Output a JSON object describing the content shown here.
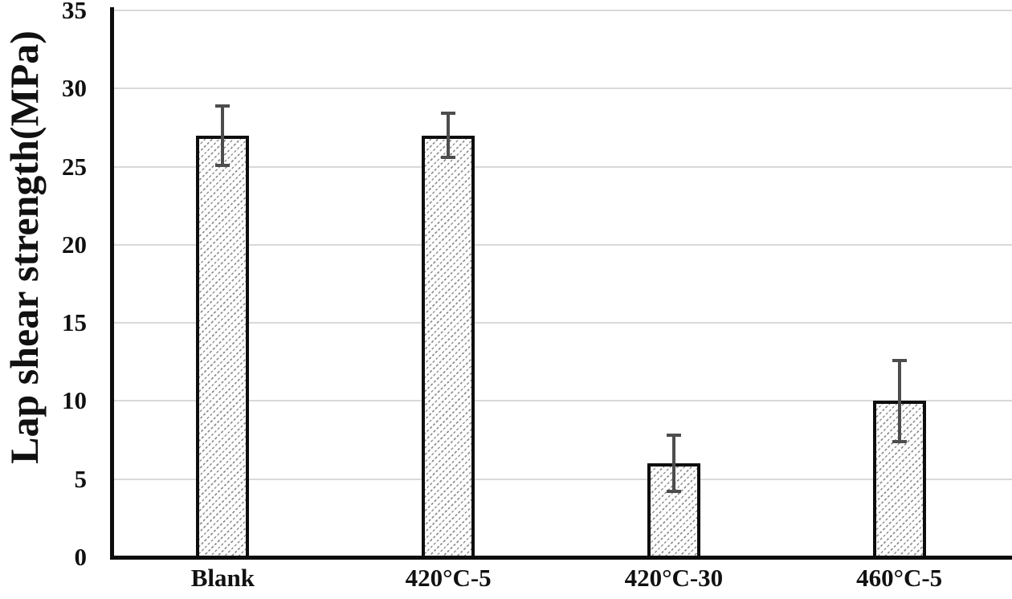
{
  "chart_data": {
    "type": "bar",
    "title": "",
    "xlabel": "",
    "ylabel": "Lap shear strength(MPa)",
    "ylim": [
      0,
      35
    ],
    "yticks": [
      0,
      5,
      10,
      15,
      20,
      25,
      30,
      35
    ],
    "grid": "horizontal",
    "legend": "none",
    "categories": [
      "Blank",
      "420°C-5",
      "420°C-30",
      "460°C-5"
    ],
    "values": [
      27,
      27,
      6,
      10
    ],
    "errors": [
      1.9,
      1.4,
      1.8,
      2.6
    ],
    "style": {
      "bar_fill": "diagonal-dashed-hatch",
      "hatch_color": "#8f8f8f",
      "bar_border_color": "#0d0d0d",
      "error_bar_color": "#4d4d4d",
      "gridline_color": "#d9d9d9",
      "axis_color": "#0d0d0d",
      "text_color": "#111111",
      "background": "#ffffff"
    }
  }
}
